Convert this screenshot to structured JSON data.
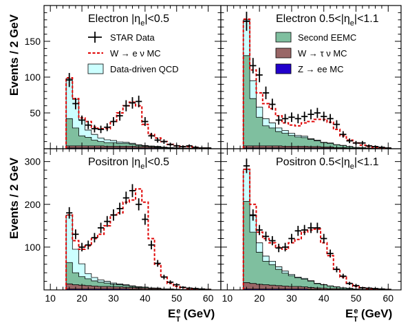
{
  "figure": {
    "ylabel": "Events / 2 GeV",
    "xlabel_main": "E",
    "xlabel_sup": "e",
    "xlabel_sub": "T",
    "xlabel_unit": " (GeV)"
  },
  "colors": {
    "data": "#000000",
    "w_enu": "#e00000",
    "qcd": "#ccffff",
    "eemc": "#7fbf9f",
    "w_taunu": "#996666",
    "z_ee": "#2200cc"
  },
  "legend": [
    {
      "key": "data",
      "label": "STAR Data",
      "style": "cross"
    },
    {
      "key": "w_enu",
      "label": "W → e ν MC",
      "style": "dashed"
    },
    {
      "key": "qcd",
      "label": "Data-driven QCD",
      "style": "box"
    },
    {
      "key": "eemc",
      "label": "Second EEMC",
      "style": "box"
    },
    {
      "key": "w_taunu",
      "label": "W → τ ν MC",
      "style": "box"
    },
    {
      "key": "z_ee",
      "label": "Z → ee MC",
      "style": "box"
    }
  ],
  "chart_data": [
    {
      "type": "histogram",
      "title": "Electron |ηe|<0.5",
      "title_parts": [
        "Electron |η",
        "e",
        "|<0.5"
      ],
      "xlim": [
        8,
        64
      ],
      "ylim": [
        0,
        200
      ],
      "yticks": [
        50,
        100,
        150
      ],
      "xticks": [
        10,
        20,
        30,
        40,
        50,
        60
      ],
      "bin_edges": [
        15,
        17,
        19,
        21,
        23,
        25,
        27,
        29,
        31,
        33,
        35,
        37,
        39,
        41,
        43,
        45,
        47,
        49,
        51,
        53,
        55,
        57,
        59,
        61
      ],
      "stacks": {
        "z_ee": [
          1,
          1,
          1,
          1,
          1,
          1,
          1,
          1,
          1,
          1,
          1,
          1,
          1,
          1,
          1,
          0.5,
          0.5,
          0.5,
          0.3,
          0.3,
          0.2,
          0.2,
          0.1
        ],
        "w_taunu": [
          3,
          3,
          3,
          3,
          3,
          3,
          2.5,
          2.5,
          2.5,
          2.5,
          2.5,
          2,
          2,
          1.5,
          1,
          1,
          0.5,
          0.5,
          0.3,
          0.3,
          0.2,
          0.2,
          0.1
        ],
        "eemc": [
          38,
          25,
          14,
          12,
          8,
          6,
          5,
          5,
          4,
          4,
          3,
          2,
          1,
          1,
          1,
          0.5,
          0.5,
          0.3,
          0.2,
          0.2,
          0.1,
          0.1,
          0
        ],
        "qcd": [
          56,
          40,
          22,
          10,
          8,
          5,
          4,
          3,
          2,
          1.5,
          1,
          0.5,
          0.5,
          0.3,
          0.3,
          0.2,
          0.2,
          0,
          0,
          0,
          0,
          0,
          0
        ]
      },
      "w_enu_total": [
        99,
        70,
        43,
        38,
        30,
        28,
        28,
        38,
        50,
        60,
        65,
        60,
        34,
        20,
        15,
        10,
        6,
        4,
        3,
        3,
        2,
        1,
        1
      ],
      "data": [
        96,
        63,
        40,
        33,
        28,
        27,
        30,
        38,
        46,
        60,
        64,
        66,
        38,
        18,
        12,
        10,
        6,
        4,
        3,
        4,
        2,
        1,
        1
      ],
      "legend_keys": [
        "data",
        "w_enu",
        "qcd"
      ]
    },
    {
      "type": "histogram",
      "title": "Electron 0.5<|ηe|<1.1",
      "title_parts": [
        "Electron 0.5<|η",
        "e",
        "|<1.1"
      ],
      "xlim": [
        8,
        64
      ],
      "ylim": [
        0,
        200
      ],
      "yticks": [
        50,
        100,
        150
      ],
      "xticks": [
        10,
        20,
        30,
        40,
        50,
        60
      ],
      "bin_edges": [
        15,
        17,
        19,
        21,
        23,
        25,
        27,
        29,
        31,
        33,
        35,
        37,
        39,
        41,
        43,
        45,
        47,
        49,
        51,
        53,
        55,
        57,
        59,
        61
      ],
      "stacks": {
        "z_ee": [
          1,
          1,
          1,
          1,
          1,
          1,
          1,
          1,
          1,
          1,
          1,
          1,
          1,
          1,
          0.5,
          0.5,
          0.5,
          0.3,
          0.3,
          0.2,
          0.2,
          0.1,
          0.1
        ],
        "w_taunu": [
          3,
          3,
          3,
          3,
          3,
          3,
          2.5,
          2.5,
          2.5,
          2.5,
          2,
          2,
          1.5,
          1.5,
          1,
          1,
          0.5,
          0.5,
          0.3,
          0.3,
          0.2,
          0.2,
          0.1
        ],
        "eemc": [
          126,
          66,
          40,
          28,
          25,
          20,
          18,
          15,
          13,
          12,
          10,
          8,
          6,
          5,
          4,
          3,
          2,
          1,
          1,
          0.5,
          0.3,
          0.2,
          0.1
        ],
        "qcd": [
          50,
          25,
          14,
          10,
          7,
          5,
          4,
          3,
          2,
          2,
          1,
          1,
          0.5,
          0.5,
          0.3,
          0.2,
          0.2,
          0,
          0,
          0,
          0,
          0,
          0
        ]
      },
      "w_enu_total": [
        181,
        110,
        78,
        63,
        56,
        46,
        36,
        33,
        32,
        36,
        38,
        41,
        41,
        37,
        27,
        18,
        12,
        8,
        5,
        3,
        2,
        1,
        1
      ],
      "data": [
        178,
        116,
        103,
        78,
        62,
        40,
        42,
        44,
        42,
        45,
        48,
        50,
        45,
        42,
        34,
        20,
        11,
        8,
        8,
        4,
        3,
        2,
        1
      ],
      "legend_keys": [
        "eemc",
        "w_taunu",
        "z_ee"
      ]
    },
    {
      "type": "histogram",
      "title": "Positron |ηe|<0.5",
      "title_parts": [
        "Positron |η",
        "e",
        "|<0.5"
      ],
      "xlim": [
        8,
        64
      ],
      "ylim": [
        0,
        330
      ],
      "yticks": [
        100,
        200,
        300
      ],
      "xticks": [
        10,
        20,
        30,
        40,
        50,
        60
      ],
      "bin_edges": [
        15,
        17,
        19,
        21,
        23,
        25,
        27,
        29,
        31,
        33,
        35,
        37,
        39,
        41,
        43,
        45,
        47,
        49,
        51,
        53,
        55,
        57,
        59,
        61
      ],
      "stacks": {
        "z_ee": [
          2,
          2,
          2,
          2,
          2,
          2,
          2,
          2,
          2,
          2,
          1.5,
          1.5,
          1,
          1,
          1,
          0.5,
          0.5,
          0.5,
          0.3,
          0.3,
          0.2,
          0.2,
          0.1
        ],
        "w_taunu": [
          12,
          10,
          9,
          8,
          7,
          6,
          6,
          5,
          5,
          4,
          4,
          3,
          3,
          2,
          2,
          1,
          1,
          0.5,
          0.5,
          0.3,
          0.3,
          0.2,
          0.1
        ],
        "eemc": [
          50,
          28,
          20,
          16,
          12,
          10,
          8,
          6,
          5,
          4,
          3,
          2,
          2,
          1,
          1,
          0.5,
          0.5,
          0.3,
          0.2,
          0.2,
          0.1,
          0.1,
          0
        ],
        "qcd": [
          111,
          55,
          30,
          12,
          8,
          5,
          4,
          3,
          2,
          2,
          1,
          1,
          0.5,
          0.5,
          0.3,
          0.2,
          0.2,
          0,
          0,
          0,
          0,
          0,
          0
        ]
      },
      "w_enu_total": [
        175,
        115,
        95,
        103,
        120,
        130,
        150,
        175,
        180,
        205,
        210,
        236,
        205,
        120,
        60,
        30,
        15,
        8,
        5,
        3,
        2,
        1,
        1
      ],
      "data": [
        180,
        130,
        100,
        105,
        122,
        145,
        160,
        175,
        190,
        215,
        232,
        200,
        165,
        105,
        62,
        30,
        18,
        12,
        6,
        4,
        3,
        2,
        1
      ],
      "legend_keys": []
    },
    {
      "type": "histogram",
      "title": "Positron 0.5<|ηe|<1.1",
      "title_parts": [
        "Positron 0.5<|η",
        "e",
        "|<1.1"
      ],
      "xlim": [
        8,
        64
      ],
      "ylim": [
        0,
        330
      ],
      "yticks": [
        100,
        200,
        300
      ],
      "xticks": [
        10,
        20,
        30,
        40,
        50,
        60
      ],
      "bin_edges": [
        15,
        17,
        19,
        21,
        23,
        25,
        27,
        29,
        31,
        33,
        35,
        37,
        39,
        41,
        43,
        45,
        47,
        49,
        51,
        53,
        55,
        57,
        59,
        61
      ],
      "stacks": {
        "z_ee": [
          2,
          2,
          2,
          2,
          2,
          2,
          2,
          2,
          2,
          2,
          1.5,
          1.5,
          1,
          1,
          1,
          0.5,
          0.5,
          0.5,
          0.3,
          0.3,
          0.2,
          0.2,
          0.1
        ],
        "w_taunu": [
          15,
          13,
          11,
          10,
          9,
          8,
          7,
          6,
          6,
          5,
          4,
          3,
          3,
          2,
          2,
          1,
          1,
          0.5,
          0.5,
          0.3,
          0.3,
          0.2,
          0.1
        ],
        "eemc": [
          190,
          120,
          75,
          55,
          48,
          38,
          30,
          25,
          20,
          18,
          15,
          10,
          8,
          6,
          4,
          3,
          2,
          1,
          0.5,
          0.3,
          0.2,
          0.1,
          0
        ],
        "qcd": [
          75,
          38,
          22,
          12,
          8,
          6,
          5,
          3,
          2,
          2,
          1,
          1,
          0.5,
          0.5,
          0.3,
          0.2,
          0.2,
          0,
          0,
          0,
          0,
          0,
          0
        ]
      },
      "w_enu_total": [
        282,
        200,
        135,
        120,
        110,
        100,
        95,
        110,
        118,
        135,
        140,
        142,
        110,
        80,
        48,
        30,
        15,
        8,
        5,
        3,
        2,
        1,
        1
      ],
      "data": [
        290,
        175,
        140,
        125,
        115,
        98,
        100,
        120,
        138,
        140,
        145,
        145,
        120,
        85,
        48,
        32,
        15,
        10,
        5,
        4,
        3,
        2,
        1
      ],
      "legend_keys": []
    }
  ]
}
